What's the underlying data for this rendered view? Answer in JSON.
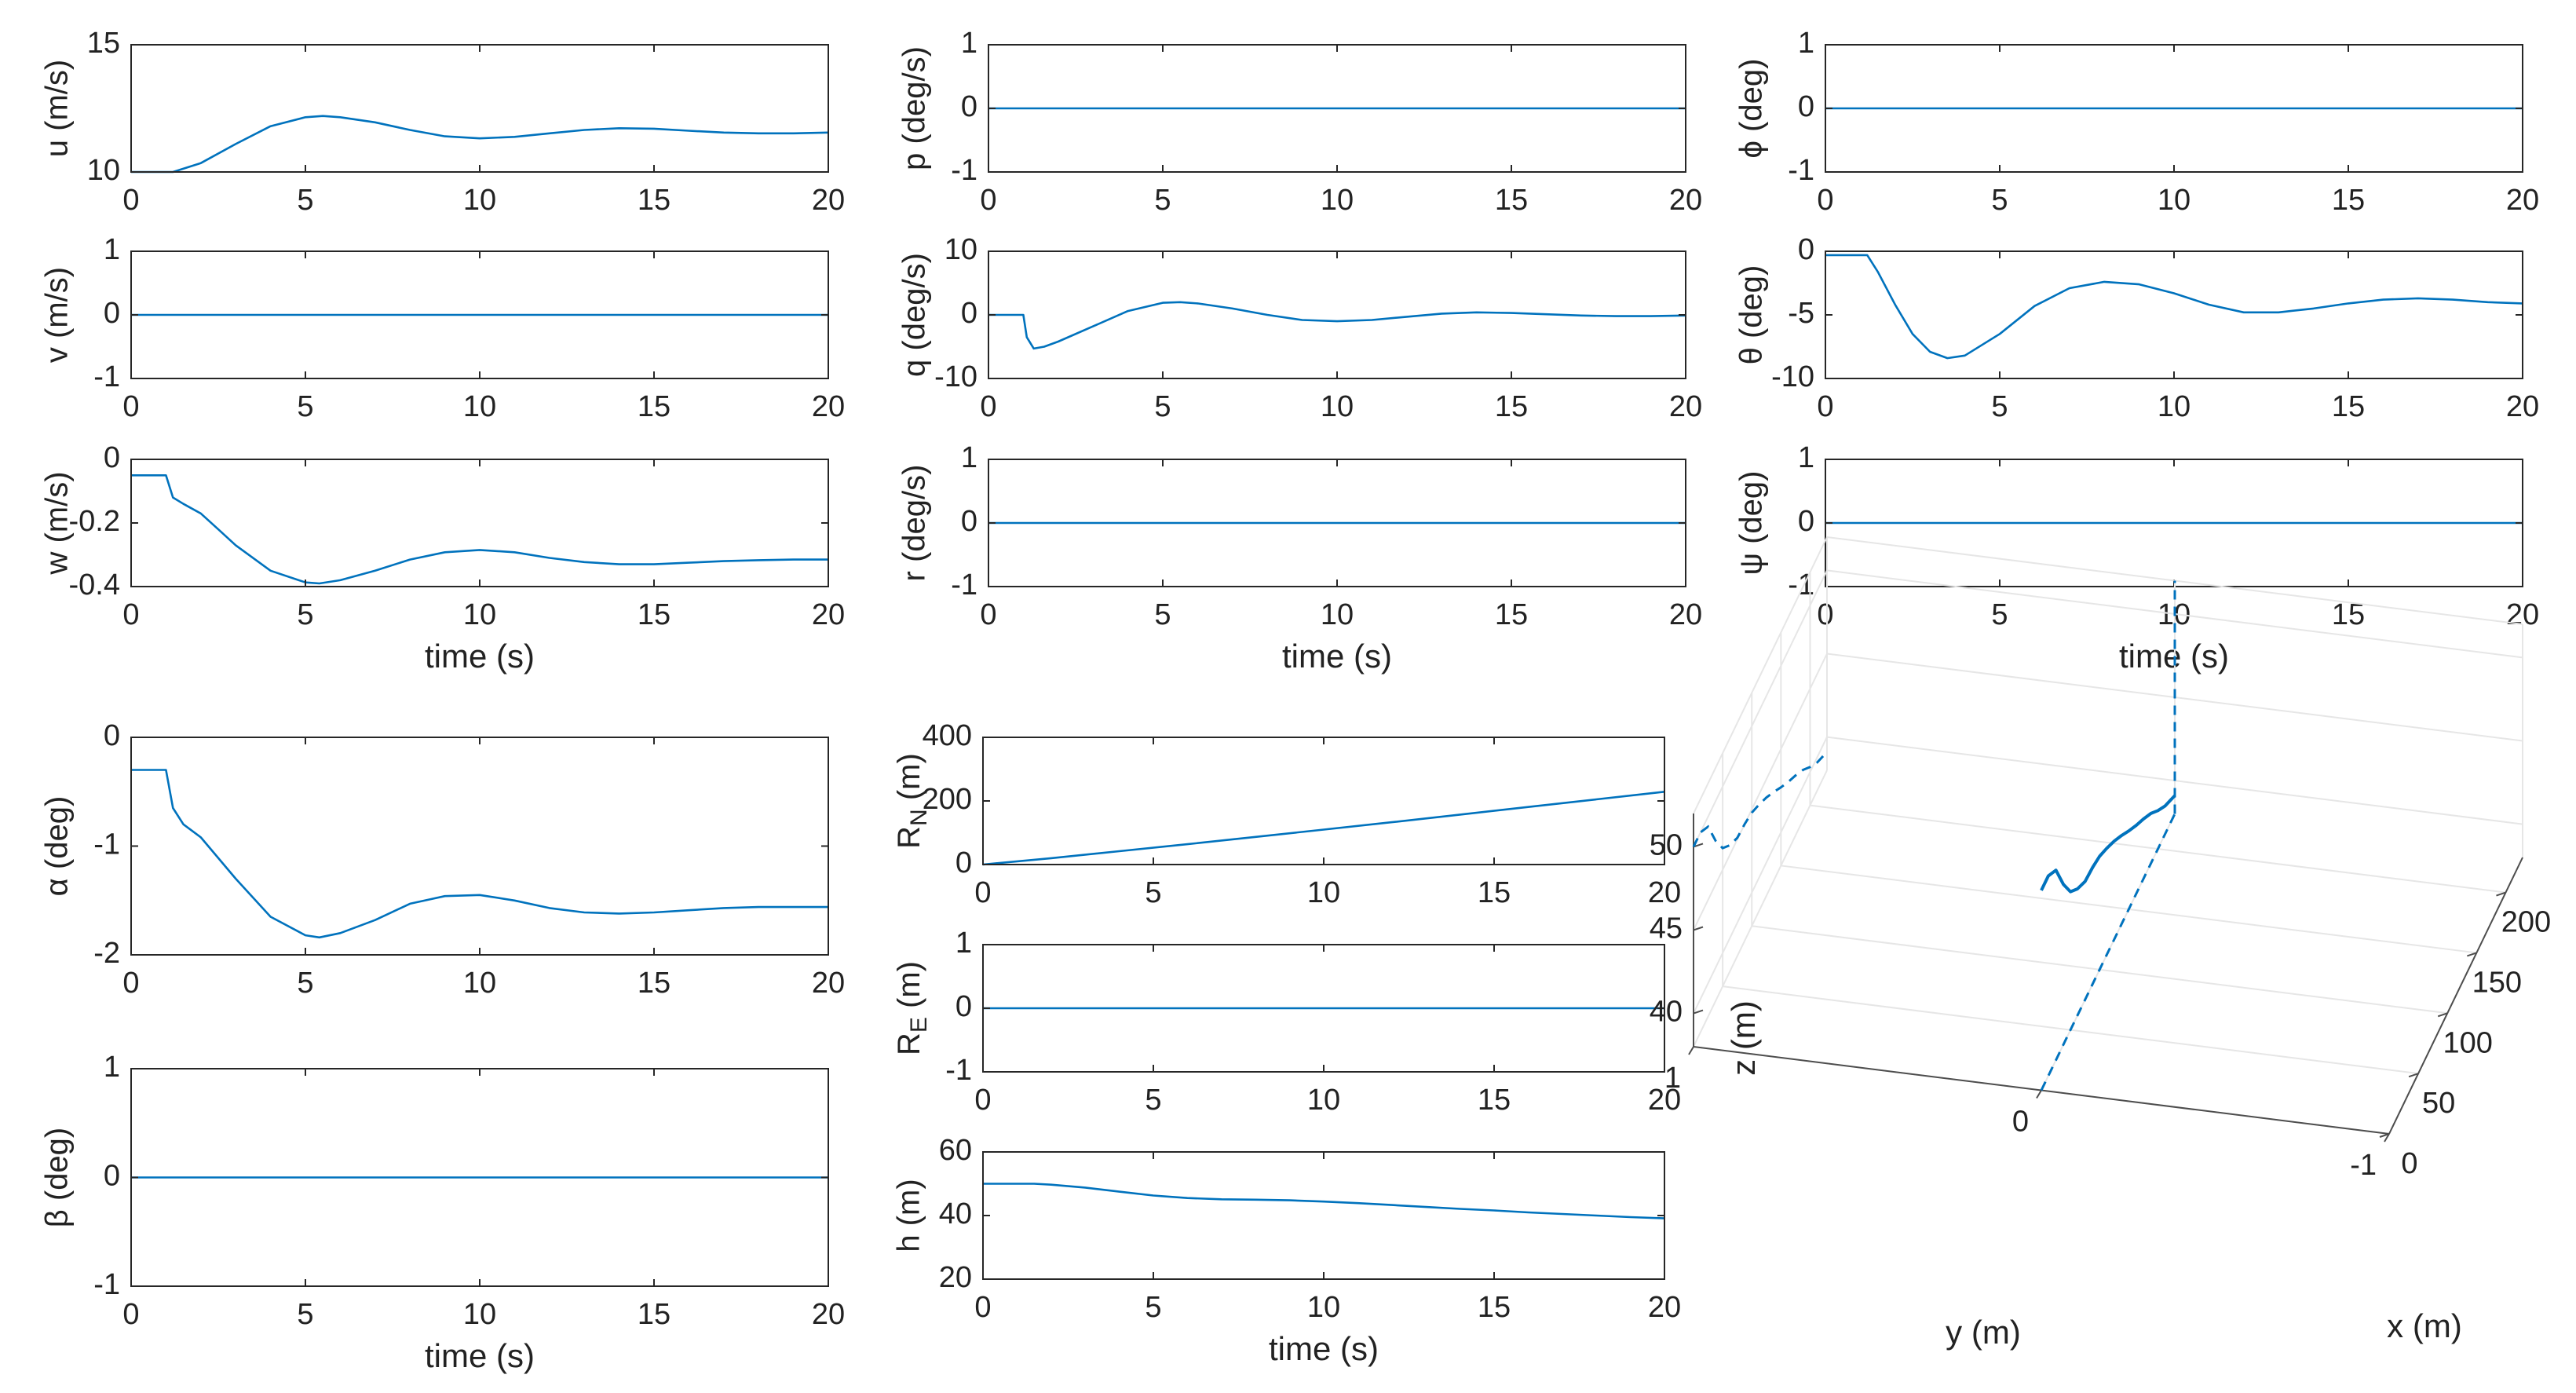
{
  "figure": {
    "line_color": "#0072BD",
    "axis_color": "#262626",
    "grid_color": "#e6e6e6",
    "background": "#ffffff"
  },
  "chart_data": [
    {
      "id": "u",
      "type": "line",
      "ylabel": "u (m/s)",
      "xlabel": "",
      "xlim": [
        0,
        20
      ],
      "ylim": [
        10,
        15
      ],
      "xticks": [
        0,
        5,
        10,
        15,
        20
      ],
      "yticks": [
        10,
        15
      ],
      "x": [
        0,
        1.2,
        2,
        3,
        4,
        5,
        5.5,
        6,
        7,
        8,
        9,
        10,
        11,
        12,
        13,
        14,
        15,
        16,
        17,
        18,
        19,
        20
      ],
      "y": [
        10.0,
        10.0,
        10.35,
        11.1,
        11.8,
        12.15,
        12.2,
        12.15,
        11.95,
        11.65,
        11.4,
        11.32,
        11.38,
        11.52,
        11.65,
        11.72,
        11.7,
        11.62,
        11.55,
        11.52,
        11.52,
        11.55
      ]
    },
    {
      "id": "p",
      "type": "line",
      "ylabel": "p (deg/s)",
      "xlabel": "",
      "xlim": [
        0,
        20
      ],
      "ylim": [
        -1,
        1
      ],
      "xticks": [
        0,
        5,
        10,
        15,
        20
      ],
      "yticks": [
        -1,
        0,
        1
      ],
      "x": [
        0,
        20
      ],
      "y": [
        0,
        0
      ]
    },
    {
      "id": "phi",
      "type": "line",
      "ylabel": "ϕ (deg)",
      "xlabel": "",
      "xlim": [
        0,
        20
      ],
      "ylim": [
        -1,
        1
      ],
      "xticks": [
        0,
        5,
        10,
        15,
        20
      ],
      "yticks": [
        -1,
        0,
        1
      ],
      "x": [
        0,
        20
      ],
      "y": [
        0,
        0
      ]
    },
    {
      "id": "v",
      "type": "line",
      "ylabel": "v (m/s)",
      "xlabel": "",
      "xlim": [
        0,
        20
      ],
      "ylim": [
        -1,
        1
      ],
      "xticks": [
        0,
        5,
        10,
        15,
        20
      ],
      "yticks": [
        -1,
        0,
        1
      ],
      "x": [
        0,
        20
      ],
      "y": [
        0,
        0
      ]
    },
    {
      "id": "q",
      "type": "line",
      "ylabel": "q (deg/s)",
      "xlabel": "",
      "xlim": [
        0,
        20
      ],
      "ylim": [
        -10,
        10
      ],
      "xticks": [
        0,
        5,
        10,
        15,
        20
      ],
      "yticks": [
        -10,
        0,
        10
      ],
      "x": [
        0,
        1.0,
        1.1,
        1.3,
        1.6,
        2,
        3,
        4,
        5,
        5.5,
        6,
        7,
        8,
        9,
        10,
        11,
        12,
        13,
        14,
        15,
        16,
        17,
        18,
        19,
        20
      ],
      "y": [
        0,
        0,
        -3.5,
        -5.3,
        -5.0,
        -4.2,
        -1.8,
        0.6,
        1.9,
        2.0,
        1.8,
        1.0,
        0.0,
        -0.8,
        -1.0,
        -0.8,
        -0.3,
        0.2,
        0.4,
        0.3,
        0.1,
        -0.1,
        -0.2,
        -0.2,
        -0.1
      ]
    },
    {
      "id": "theta",
      "type": "line",
      "ylabel": "θ (deg)",
      "xlabel": "",
      "xlim": [
        0,
        20
      ],
      "ylim": [
        -10,
        0
      ],
      "xticks": [
        0,
        5,
        10,
        15,
        20
      ],
      "yticks": [
        -10,
        -5,
        0
      ],
      "x": [
        0,
        1.2,
        1.5,
        2,
        2.5,
        3,
        3.5,
        4,
        5,
        6,
        7,
        8,
        9,
        10,
        11,
        12,
        13,
        14,
        15,
        16,
        17,
        18,
        19,
        20
      ],
      "y": [
        -0.3,
        -0.3,
        -1.6,
        -4.2,
        -6.5,
        -7.9,
        -8.4,
        -8.2,
        -6.5,
        -4.3,
        -2.9,
        -2.4,
        -2.6,
        -3.3,
        -4.2,
        -4.8,
        -4.8,
        -4.5,
        -4.1,
        -3.8,
        -3.7,
        -3.8,
        -4.0,
        -4.1
      ]
    },
    {
      "id": "w",
      "type": "line",
      "ylabel": "w (m/s)",
      "xlabel": "time (s)",
      "xlim": [
        0,
        20
      ],
      "ylim": [
        -0.4,
        0
      ],
      "xticks": [
        0,
        5,
        10,
        15,
        20
      ],
      "yticks": [
        -0.4,
        -0.2,
        0
      ],
      "x": [
        0,
        1.0,
        1.2,
        1.5,
        2,
        2.5,
        3,
        4,
        5,
        5.4,
        6,
        7,
        8,
        9,
        10,
        11,
        12,
        13,
        14,
        15,
        16,
        17,
        18,
        19,
        20
      ],
      "y": [
        -0.05,
        -0.05,
        -0.12,
        -0.14,
        -0.17,
        -0.22,
        -0.27,
        -0.35,
        -0.387,
        -0.39,
        -0.38,
        -0.35,
        -0.315,
        -0.292,
        -0.285,
        -0.292,
        -0.31,
        -0.323,
        -0.33,
        -0.33,
        -0.325,
        -0.32,
        -0.317,
        -0.315,
        -0.315
      ]
    },
    {
      "id": "r",
      "type": "line",
      "ylabel": "r (deg/s)",
      "xlabel": "time (s)",
      "xlim": [
        0,
        20
      ],
      "ylim": [
        -1,
        1
      ],
      "xticks": [
        0,
        5,
        10,
        15,
        20
      ],
      "yticks": [
        -1,
        0,
        1
      ],
      "x": [
        0,
        20
      ],
      "y": [
        0,
        0
      ]
    },
    {
      "id": "psi",
      "type": "line",
      "ylabel": "ψ (deg)",
      "xlabel": "time (s)",
      "xlim": [
        0,
        20
      ],
      "ylim": [
        -1,
        1
      ],
      "xticks": [
        0,
        5,
        10,
        15,
        20
      ],
      "yticks": [
        -1,
        0,
        1
      ],
      "x": [
        0,
        20
      ],
      "y": [
        0,
        0
      ]
    },
    {
      "id": "alpha",
      "type": "line",
      "ylabel": "α (deg)",
      "xlabel": "",
      "xlim": [
        0,
        20
      ],
      "ylim": [
        -2,
        0
      ],
      "xticks": [
        0,
        5,
        10,
        15,
        20
      ],
      "yticks": [
        -2,
        -1,
        0
      ],
      "x": [
        0,
        1.0,
        1.2,
        1.5,
        2,
        3,
        4,
        5,
        5.4,
        6,
        7,
        8,
        9,
        10,
        11,
        12,
        13,
        14,
        15,
        16,
        17,
        18,
        19,
        20
      ],
      "y": [
        -0.3,
        -0.3,
        -0.65,
        -0.8,
        -0.92,
        -1.3,
        -1.65,
        -1.82,
        -1.84,
        -1.8,
        -1.68,
        -1.53,
        -1.46,
        -1.45,
        -1.5,
        -1.57,
        -1.61,
        -1.62,
        -1.61,
        -1.59,
        -1.57,
        -1.56,
        -1.56,
        -1.56
      ]
    },
    {
      "id": "beta",
      "type": "line",
      "ylabel": "β (deg)",
      "xlabel": "time (s)",
      "xlim": [
        0,
        20
      ],
      "ylim": [
        -1,
        1
      ],
      "xticks": [
        0,
        5,
        10,
        15,
        20
      ],
      "yticks": [
        -1,
        0,
        1
      ],
      "x": [
        0,
        20
      ],
      "y": [
        0,
        0
      ]
    },
    {
      "id": "RN",
      "type": "line",
      "ylabel": "R",
      "ylabel_sub": "N",
      "ylabel_unit": "(m)",
      "xlabel": "",
      "xlim": [
        0,
        20
      ],
      "ylim": [
        0,
        400
      ],
      "xticks": [
        0,
        5,
        10,
        15,
        20
      ],
      "yticks": [
        0,
        200,
        400
      ],
      "x": [
        0,
        2,
        4,
        6,
        8,
        10,
        12,
        14,
        16,
        18,
        20
      ],
      "y": [
        0,
        20,
        42,
        64,
        87,
        110,
        133,
        157,
        181,
        205,
        229
      ]
    },
    {
      "id": "RE",
      "type": "line",
      "ylabel": "R",
      "ylabel_sub": "E",
      "ylabel_unit": "(m)",
      "xlabel": "",
      "xlim": [
        0,
        20
      ],
      "ylim": [
        -1,
        1
      ],
      "xticks": [
        0,
        5,
        10,
        15,
        20
      ],
      "yticks": [
        -1,
        0,
        1
      ],
      "x": [
        0,
        20
      ],
      "y": [
        0,
        0
      ]
    },
    {
      "id": "h",
      "type": "line",
      "ylabel": "h (m)",
      "xlabel": "time (s)",
      "xlim": [
        0,
        20
      ],
      "ylim": [
        20,
        60
      ],
      "xticks": [
        0,
        5,
        10,
        15,
        20
      ],
      "yticks": [
        20,
        40,
        60
      ],
      "x": [
        0,
        1.5,
        2,
        3,
        4,
        5,
        6,
        7,
        8,
        9,
        10,
        11,
        12,
        13,
        14,
        15,
        16,
        17,
        18,
        19,
        20
      ],
      "y": [
        50,
        50,
        49.7,
        48.8,
        47.5,
        46.3,
        45.5,
        45.1,
        45.0,
        44.8,
        44.4,
        43.9,
        43.3,
        42.7,
        42.1,
        41.6,
        41.0,
        40.5,
        40.0,
        39.5,
        39.1
      ]
    },
    {
      "id": "traj3d",
      "type": "line3d",
      "xlabel": "x (m)",
      "ylabel": "y (m)",
      "zlabel": "z (m)",
      "xlim": [
        0,
        229
      ],
      "ylim": [
        -1,
        1
      ],
      "zlim": [
        38,
        52
      ],
      "xticks": [
        0,
        50,
        100,
        150,
        200
      ],
      "yticks": [
        -1,
        0,
        1
      ],
      "zticks": [
        40,
        45,
        50
      ],
      "x": [
        0,
        12,
        25,
        38,
        50,
        62,
        75,
        88,
        100,
        112,
        125,
        138,
        150,
        163,
        175,
        188,
        200,
        212,
        229
      ],
      "y": [
        0,
        0,
        0,
        0,
        0,
        0,
        0,
        0,
        0,
        0,
        0,
        0,
        0,
        0,
        0,
        0,
        0,
        0,
        0
      ],
      "z": [
        50,
        50,
        49.4,
        47.6,
        46.3,
        45.6,
        45.1,
        45.0,
        44.8,
        44.4,
        43.9,
        43.3,
        42.7,
        42.1,
        41.6,
        41.0,
        40.3,
        39.7,
        39.1
      ]
    }
  ]
}
